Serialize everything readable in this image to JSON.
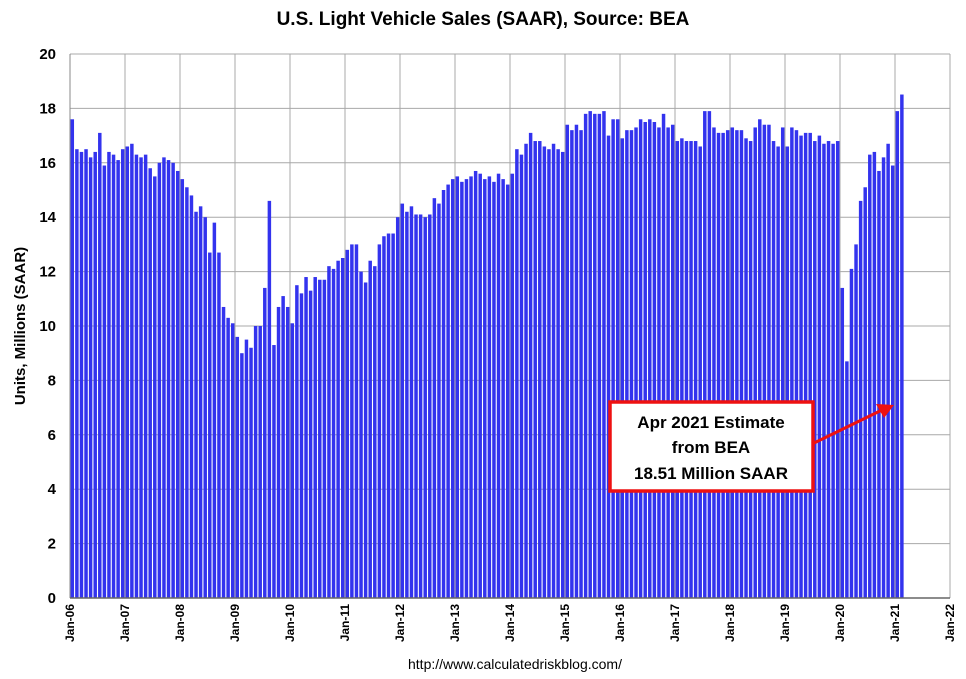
{
  "chart_data": {
    "type": "bar",
    "title": "U.S. Light Vehicle Sales (SAAR), Source: BEA",
    "ylabel": "Units, Millions (SAAR)",
    "xlabel": "",
    "ylim": [
      0,
      20
    ],
    "yticks": [
      0,
      2,
      4,
      6,
      8,
      10,
      12,
      14,
      16,
      18,
      20
    ],
    "xticks": [
      "Jan-06",
      "Jan-07",
      "Jan-08",
      "Jan-09",
      "Jan-10",
      "Jan-11",
      "Jan-12",
      "Jan-13",
      "Jan-14",
      "Jan-15",
      "Jan-16",
      "Jan-17",
      "Jan-18",
      "Jan-19",
      "Jan-20",
      "Jan-21",
      "Jan-22"
    ],
    "x_start": "2006-01",
    "grid": true,
    "legend": "none",
    "bar_color": "#3333ee",
    "highlight_color": "#ee1111",
    "values": [
      17.6,
      16.5,
      16.4,
      16.5,
      16.2,
      16.4,
      17.1,
      15.9,
      16.4,
      16.3,
      16.1,
      16.5,
      16.6,
      16.7,
      16.3,
      16.2,
      16.3,
      15.8,
      15.5,
      16.0,
      16.2,
      16.1,
      16.0,
      15.7,
      15.4,
      15.1,
      14.8,
      14.2,
      14.4,
      14.0,
      12.7,
      13.8,
      12.7,
      10.7,
      10.3,
      10.1,
      9.6,
      9.0,
      9.5,
      9.2,
      10.0,
      10.0,
      11.4,
      14.6,
      9.3,
      10.7,
      11.1,
      10.7,
      10.1,
      11.5,
      11.2,
      11.8,
      11.3,
      11.8,
      11.7,
      11.7,
      12.2,
      12.1,
      12.4,
      12.5,
      12.8,
      13.0,
      13.0,
      12.0,
      11.6,
      12.4,
      12.2,
      13.0,
      13.3,
      13.4,
      13.4,
      14.0,
      14.5,
      14.2,
      14.4,
      14.1,
      14.1,
      14.0,
      14.1,
      14.7,
      14.5,
      15.0,
      15.2,
      15.4,
      15.5,
      15.3,
      15.4,
      15.5,
      15.7,
      15.6,
      15.4,
      15.5,
      15.3,
      15.6,
      15.4,
      15.2,
      15.6,
      16.5,
      16.3,
      16.7,
      17.1,
      16.8,
      16.8,
      16.6,
      16.5,
      16.7,
      16.5,
      16.4,
      17.4,
      17.2,
      17.4,
      17.2,
      17.8,
      17.9,
      17.8,
      17.8,
      17.9,
      17.0,
      17.6,
      17.6,
      16.9,
      17.2,
      17.2,
      17.3,
      17.6,
      17.5,
      17.6,
      17.5,
      17.3,
      17.8,
      17.3,
      17.4,
      16.8,
      16.9,
      16.8,
      16.8,
      16.8,
      16.6,
      17.9,
      17.9,
      17.3,
      17.1,
      17.1,
      17.2,
      17.3,
      17.2,
      17.2,
      16.9,
      16.8,
      17.3,
      17.6,
      17.4,
      17.4,
      16.8,
      16.6,
      17.3,
      16.6,
      17.3,
      17.2,
      17.0,
      17.1,
      17.1,
      16.8,
      17.0,
      16.7,
      16.8,
      16.7,
      16.8,
      11.4,
      8.7,
      12.1,
      13.0,
      14.6,
      15.1,
      16.3,
      16.4,
      15.7,
      16.2,
      16.7,
      15.9,
      17.9,
      18.51
    ],
    "highlight_index": 183,
    "annotation": {
      "lines": [
        "Apr 2021 Estimate",
        "from BEA",
        "18.51 Million SAAR"
      ],
      "target": "Apr-21",
      "box_color": "#ee1111"
    }
  },
  "footer": {
    "source_url": "http://www.calculatedriskblog.com/"
  }
}
